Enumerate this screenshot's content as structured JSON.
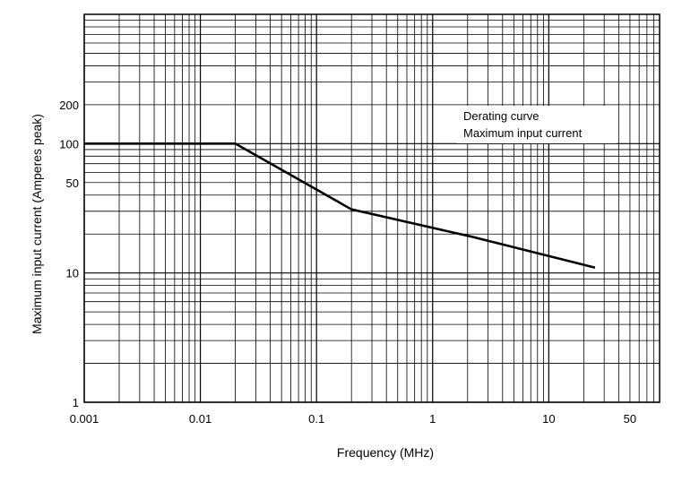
{
  "chart_data": {
    "type": "line",
    "title": "",
    "xlabel": "Frequency (MHz)",
    "ylabel": "Maximum input current (Amperes peak)",
    "xscale": "log",
    "yscale": "log",
    "xlim": [
      0.001,
      90
    ],
    "ylim": [
      1,
      1000
    ],
    "grid": true,
    "x_tick_labels": [
      {
        "value": 0.001,
        "label": "0.001"
      },
      {
        "value": 0.01,
        "label": "0.01"
      },
      {
        "value": 0.1,
        "label": "0.1"
      },
      {
        "value": 1,
        "label": "1"
      },
      {
        "value": 10,
        "label": "10"
      },
      {
        "value": 50,
        "label": "50"
      }
    ],
    "y_tick_labels": [
      {
        "value": 1,
        "label": "1"
      },
      {
        "value": 10,
        "label": "10"
      },
      {
        "value": 50,
        "label": "50"
      },
      {
        "value": 100,
        "label": "100"
      },
      {
        "value": 200,
        "label": "200"
      }
    ],
    "legend": {
      "placement": "upper-right",
      "entries": [
        "Derating curve",
        "Maximum input current"
      ]
    },
    "series": [
      {
        "name": "Derating curve",
        "x": [
          0.001,
          0.02,
          0.2,
          2.2,
          25
        ],
        "y": [
          100,
          100,
          31,
          19,
          11
        ]
      }
    ]
  }
}
